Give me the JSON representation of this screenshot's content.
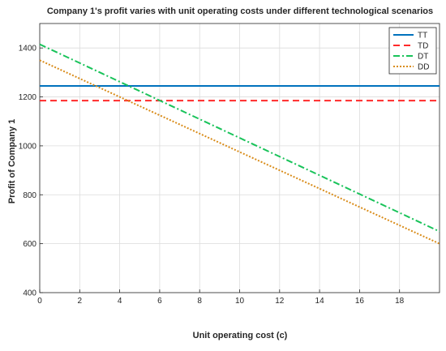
{
  "chart_data": {
    "type": "line",
    "title": "Company 1's profit varies with unit operating costs under different technological scenarios",
    "xlabel": "Unit operating cost (c)",
    "ylabel": "Profit of Company 1",
    "xlim": [
      0,
      20
    ],
    "ylim": [
      400,
      1500
    ],
    "xticks": [
      0,
      2,
      4,
      6,
      8,
      10,
      12,
      14,
      16,
      18
    ],
    "yticks": [
      400,
      600,
      800,
      1000,
      1200,
      1400
    ],
    "grid": true,
    "legend_position": "top-right",
    "series": [
      {
        "name": "TT",
        "color": "#0072BD",
        "style": "solid",
        "x": [
          0,
          20
        ],
        "y": [
          1245,
          1245
        ]
      },
      {
        "name": "TD",
        "color": "#FF2A2A",
        "style": "dashed",
        "x": [
          0,
          20
        ],
        "y": [
          1185,
          1185
        ]
      },
      {
        "name": "DT",
        "color": "#19C35A",
        "style": "dashdot",
        "x": [
          0,
          20
        ],
        "y": [
          1415,
          650
        ]
      },
      {
        "name": "DD",
        "color": "#D98C1A",
        "style": "dotted",
        "x": [
          0,
          20
        ],
        "y": [
          1350,
          600
        ]
      }
    ]
  }
}
